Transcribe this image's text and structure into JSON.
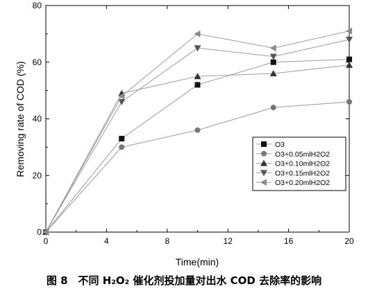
{
  "chart_data": {
    "type": "line",
    "xlabel": "Time(min)",
    "ylabel": "Removing rate of COD (%)",
    "xlim": [
      0,
      20
    ],
    "ylim": [
      0,
      80
    ],
    "xticks": [
      0,
      4,
      8,
      12,
      16,
      20
    ],
    "yticks": [
      0,
      20,
      40,
      60,
      80
    ],
    "grid": false,
    "legend_position": "bottom-right",
    "series": [
      {
        "name": "O3",
        "marker": "square",
        "x": [
          0,
          5,
          10,
          15,
          20
        ],
        "values": [
          0,
          33,
          52,
          60,
          61
        ]
      },
      {
        "name": "O3+0.05mlH2O2",
        "marker": "circle",
        "x": [
          0,
          5,
          10,
          15,
          20
        ],
        "values": [
          0,
          30,
          36,
          44,
          46
        ]
      },
      {
        "name": "O3+0.10mlH2O2",
        "marker": "triangle-up",
        "x": [
          0,
          5,
          10,
          15,
          20
        ],
        "values": [
          0,
          49,
          55,
          56,
          59
        ]
      },
      {
        "name": "O3+0.15mlH2O2",
        "marker": "triangle-down",
        "x": [
          0,
          5,
          10,
          15,
          20
        ],
        "values": [
          0,
          46,
          65,
          62,
          68
        ]
      },
      {
        "name": "O3+0.20mlH2O2",
        "marker": "triangle-left",
        "x": [
          0,
          5,
          10,
          15,
          20
        ],
        "values": [
          0,
          48,
          70,
          65,
          71
        ]
      }
    ]
  },
  "caption": {
    "text": "图 8　不同 H₂O₂ 催化剂投加量对出水 COD 去除率的影响"
  },
  "colors": {
    "O3": "#111111",
    "O3+0.05mlH2O2": "#777777",
    "O3+0.10mlH2O2": "#333333",
    "O3+0.15mlH2O2": "#555555",
    "O3+0.20mlH2O2": "#8a8a8a",
    "line": "#9a9a9a"
  }
}
